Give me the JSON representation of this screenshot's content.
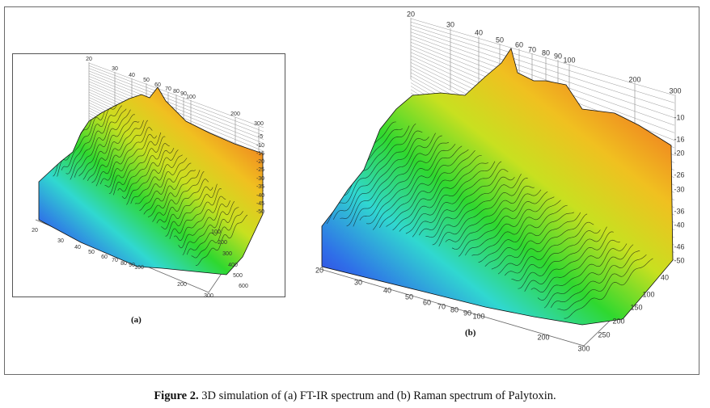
{
  "figure": {
    "label": "Figure 2.",
    "caption": " 3D simulation of (a) FT-IR spectrum and (b) Raman spectrum of Palytoxin."
  },
  "panels": [
    {
      "id": "a",
      "label": "(a)",
      "back_axis_ticks": [
        "20",
        "30",
        "40",
        "50",
        "60",
        "70",
        "80",
        "90",
        "100",
        "200",
        "300"
      ],
      "front_axis_ticks": [
        "20",
        "30",
        "40",
        "50",
        "60",
        "70",
        "80",
        "90",
        "100",
        "200",
        "300"
      ],
      "z_axis_ticks": [
        "-5",
        "-10",
        "-15",
        "-20",
        "-25",
        "-30",
        "-35",
        "-40",
        "-45",
        "-50"
      ],
      "depth_axis_ticks": [
        "100",
        "200",
        "300",
        "400",
        "500",
        "600"
      ]
    },
    {
      "id": "b",
      "label": "(b)",
      "back_axis_ticks": [
        "20",
        "30",
        "40",
        "50",
        "60",
        "70",
        "80",
        "90",
        "100",
        "200",
        "300"
      ],
      "front_axis_ticks": [
        "20",
        "30",
        "40",
        "50",
        "60",
        "70",
        "80",
        "90",
        "100",
        "200",
        "300"
      ],
      "z_axis_ticks": [
        "-10",
        "-16",
        "-20",
        "-26",
        "-30",
        "-36",
        "-40",
        "-46",
        "-50"
      ],
      "depth_axis_ticks": [
        "40",
        "100",
        "150",
        "200",
        "250"
      ]
    }
  ],
  "colors": {
    "colormap": [
      "#3a20d8",
      "#2f6fe8",
      "#30d8d0",
      "#2fd82f",
      "#c8e020",
      "#f0c020",
      "#f08020",
      "#d82018"
    ],
    "border": "#6b6b6b"
  }
}
